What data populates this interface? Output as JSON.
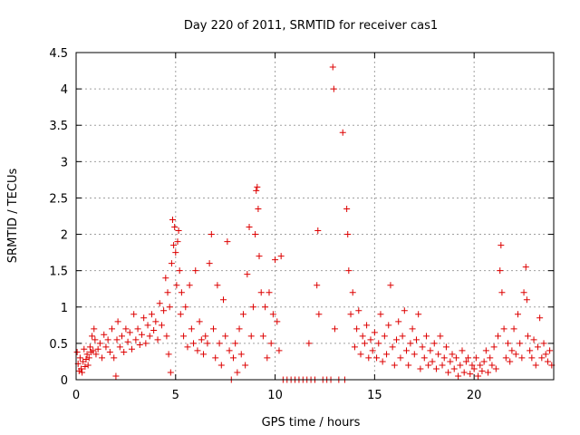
{
  "chart_data": {
    "type": "scatter",
    "title": "Day 220 of 2011, SRMTID for receiver cas1",
    "xlabel": "GPS time / hours",
    "ylabel": "SRMTID / TECUs",
    "xlim": [
      0,
      24
    ],
    "ylim": [
      0,
      4.5
    ],
    "xticks": [
      0,
      5,
      10,
      15,
      20
    ],
    "yticks": [
      0,
      0.5,
      1,
      1.5,
      2,
      2.5,
      3,
      3.5,
      4,
      4.5
    ],
    "xtick_labels": [
      "0",
      "5",
      "10",
      "15",
      "20"
    ],
    "ytick_labels": [
      "0",
      "0.5",
      "1",
      "1.5",
      "2",
      "2.5",
      "3",
      "3.5",
      "4",
      "4.5"
    ],
    "grid": true,
    "marker": "+",
    "color": "#dd0000",
    "series": [
      {
        "name": "cas1",
        "points": [
          [
            0.05,
            0.38
          ],
          [
            0.1,
            0.22
          ],
          [
            0.15,
            0.12
          ],
          [
            0.2,
            0.3
          ],
          [
            0.25,
            0.15
          ],
          [
            0.3,
            0.1
          ],
          [
            0.35,
            0.25
          ],
          [
            0.4,
            0.42
          ],
          [
            0.45,
            0.18
          ],
          [
            0.5,
            0.28
          ],
          [
            0.55,
            0.35
          ],
          [
            0.6,
            0.2
          ],
          [
            0.65,
            0.3
          ],
          [
            0.7,
            0.45
          ],
          [
            0.75,
            0.38
          ],
          [
            0.8,
            0.6
          ],
          [
            0.85,
            0.4
          ],
          [
            0.9,
            0.7
          ],
          [
            0.95,
            0.55
          ],
          [
            1.0,
            0.35
          ],
          [
            1.1,
            0.42
          ],
          [
            1.2,
            0.5
          ],
          [
            1.3,
            0.3
          ],
          [
            1.4,
            0.62
          ],
          [
            1.5,
            0.45
          ],
          [
            1.6,
            0.55
          ],
          [
            1.7,
            0.38
          ],
          [
            1.8,
            0.7
          ],
          [
            1.9,
            0.3
          ],
          [
            2.0,
            0.05
          ],
          [
            2.05,
            0.55
          ],
          [
            2.1,
            0.8
          ],
          [
            2.2,
            0.45
          ],
          [
            2.3,
            0.6
          ],
          [
            2.4,
            0.38
          ],
          [
            2.5,
            0.7
          ],
          [
            2.6,
            0.52
          ],
          [
            2.7,
            0.65
          ],
          [
            2.8,
            0.42
          ],
          [
            2.9,
            0.9
          ],
          [
            3.0,
            0.55
          ],
          [
            3.1,
            0.7
          ],
          [
            3.2,
            0.48
          ],
          [
            3.3,
            0.62
          ],
          [
            3.4,
            0.85
          ],
          [
            3.5,
            0.5
          ],
          [
            3.6,
            0.75
          ],
          [
            3.7,
            0.6
          ],
          [
            3.8,
            0.9
          ],
          [
            3.9,
            0.68
          ],
          [
            4.0,
            0.8
          ],
          [
            4.1,
            0.55
          ],
          [
            4.2,
            1.05
          ],
          [
            4.3,
            0.75
          ],
          [
            4.4,
            0.95
          ],
          [
            4.5,
            1.4
          ],
          [
            4.55,
            0.6
          ],
          [
            4.6,
            1.2
          ],
          [
            4.65,
            0.35
          ],
          [
            4.7,
            1.0
          ],
          [
            4.75,
            0.1
          ],
          [
            4.8,
            1.6
          ],
          [
            4.85,
            2.2
          ],
          [
            4.9,
            1.85
          ],
          [
            4.95,
            2.1
          ],
          [
            5.0,
            1.75
          ],
          [
            5.05,
            1.3
          ],
          [
            5.1,
            1.9
          ],
          [
            5.15,
            2.05
          ],
          [
            5.2,
            1.5
          ],
          [
            5.25,
            0.9
          ],
          [
            5.3,
            1.2
          ],
          [
            5.4,
            0.6
          ],
          [
            5.5,
            1.0
          ],
          [
            5.6,
            0.45
          ],
          [
            5.7,
            1.3
          ],
          [
            5.8,
            0.7
          ],
          [
            5.9,
            0.5
          ],
          [
            6.0,
            1.5
          ],
          [
            6.1,
            0.4
          ],
          [
            6.2,
            0.8
          ],
          [
            6.3,
            0.55
          ],
          [
            6.4,
            0.35
          ],
          [
            6.5,
            0.6
          ],
          [
            6.6,
            0.5
          ],
          [
            6.7,
            1.6
          ],
          [
            6.8,
            2.0
          ],
          [
            6.9,
            0.7
          ],
          [
            7.0,
            0.3
          ],
          [
            7.1,
            1.3
          ],
          [
            7.2,
            0.5
          ],
          [
            7.3,
            0.2
          ],
          [
            7.4,
            1.1
          ],
          [
            7.5,
            0.6
          ],
          [
            7.6,
            1.9
          ],
          [
            7.7,
            0.4
          ],
          [
            7.8,
            0.0
          ],
          [
            7.9,
            0.3
          ],
          [
            8.0,
            0.5
          ],
          [
            8.1,
            0.1
          ],
          [
            8.2,
            0.7
          ],
          [
            8.3,
            0.35
          ],
          [
            8.4,
            0.9
          ],
          [
            8.5,
            0.2
          ],
          [
            8.6,
            1.45
          ],
          [
            8.7,
            2.1
          ],
          [
            8.8,
            0.6
          ],
          [
            8.9,
            1.0
          ],
          [
            9.0,
            2.0
          ],
          [
            9.05,
            2.6
          ],
          [
            9.1,
            2.65
          ],
          [
            9.15,
            2.35
          ],
          [
            9.2,
            1.7
          ],
          [
            9.3,
            1.2
          ],
          [
            9.4,
            0.6
          ],
          [
            9.5,
            1.0
          ],
          [
            9.6,
            0.3
          ],
          [
            9.7,
            1.2
          ],
          [
            9.8,
            0.5
          ],
          [
            9.9,
            0.9
          ],
          [
            10.0,
            1.65
          ],
          [
            10.1,
            0.8
          ],
          [
            10.2,
            0.4
          ],
          [
            10.3,
            1.7
          ],
          [
            10.4,
            0.0
          ],
          [
            10.6,
            0.0
          ],
          [
            10.8,
            0.0
          ],
          [
            11.0,
            0.0
          ],
          [
            11.2,
            0.0
          ],
          [
            11.4,
            0.0
          ],
          [
            11.6,
            0.0
          ],
          [
            11.7,
            0.5
          ],
          [
            11.8,
            0.0
          ],
          [
            12.0,
            0.0
          ],
          [
            12.1,
            1.3
          ],
          [
            12.15,
            2.05
          ],
          [
            12.2,
            0.9
          ],
          [
            12.4,
            0.0
          ],
          [
            12.6,
            0.0
          ],
          [
            12.8,
            0.0
          ],
          [
            12.9,
            4.3
          ],
          [
            12.95,
            4.0
          ],
          [
            13.0,
            0.7
          ],
          [
            13.2,
            0.0
          ],
          [
            13.4,
            3.4
          ],
          [
            13.5,
            0.0
          ],
          [
            13.6,
            2.35
          ],
          [
            13.65,
            2.0
          ],
          [
            13.7,
            1.5
          ],
          [
            13.8,
            0.9
          ],
          [
            13.9,
            1.2
          ],
          [
            14.0,
            0.45
          ],
          [
            14.1,
            0.7
          ],
          [
            14.2,
            0.95
          ],
          [
            14.3,
            0.35
          ],
          [
            14.4,
            0.6
          ],
          [
            14.5,
            0.5
          ],
          [
            14.6,
            0.75
          ],
          [
            14.7,
            0.3
          ],
          [
            14.8,
            0.55
          ],
          [
            14.9,
            0.4
          ],
          [
            15.0,
            0.65
          ],
          [
            15.1,
            0.3
          ],
          [
            15.2,
            0.5
          ],
          [
            15.3,
            0.9
          ],
          [
            15.4,
            0.25
          ],
          [
            15.5,
            0.6
          ],
          [
            15.6,
            0.35
          ],
          [
            15.7,
            0.75
          ],
          [
            15.8,
            1.3
          ],
          [
            15.9,
            0.45
          ],
          [
            16.0,
            0.2
          ],
          [
            16.1,
            0.55
          ],
          [
            16.2,
            0.8
          ],
          [
            16.3,
            0.3
          ],
          [
            16.4,
            0.6
          ],
          [
            16.5,
            0.95
          ],
          [
            16.6,
            0.4
          ],
          [
            16.7,
            0.2
          ],
          [
            16.8,
            0.5
          ],
          [
            16.9,
            0.7
          ],
          [
            17.0,
            0.35
          ],
          [
            17.1,
            0.55
          ],
          [
            17.2,
            0.9
          ],
          [
            17.3,
            0.15
          ],
          [
            17.4,
            0.45
          ],
          [
            17.5,
            0.3
          ],
          [
            17.6,
            0.6
          ],
          [
            17.7,
            0.2
          ],
          [
            17.8,
            0.4
          ],
          [
            17.9,
            0.25
          ],
          [
            18.0,
            0.5
          ],
          [
            18.1,
            0.15
          ],
          [
            18.2,
            0.35
          ],
          [
            18.3,
            0.6
          ],
          [
            18.4,
            0.2
          ],
          [
            18.5,
            0.3
          ],
          [
            18.6,
            0.45
          ],
          [
            18.7,
            0.1
          ],
          [
            18.8,
            0.25
          ],
          [
            18.9,
            0.35
          ],
          [
            19.0,
            0.15
          ],
          [
            19.1,
            0.3
          ],
          [
            19.2,
            0.05
          ],
          [
            19.3,
            0.2
          ],
          [
            19.4,
            0.4
          ],
          [
            19.5,
            0.1
          ],
          [
            19.6,
            0.25
          ],
          [
            19.7,
            0.3
          ],
          [
            19.8,
            0.08
          ],
          [
            19.9,
            0.2
          ],
          [
            20.0,
            0.15
          ],
          [
            20.1,
            0.3
          ],
          [
            20.2,
            0.05
          ],
          [
            20.3,
            0.2
          ],
          [
            20.4,
            0.12
          ],
          [
            20.5,
            0.25
          ],
          [
            20.6,
            0.4
          ],
          [
            20.7,
            0.1
          ],
          [
            20.8,
            0.3
          ],
          [
            20.9,
            0.2
          ],
          [
            21.0,
            0.45
          ],
          [
            21.1,
            0.15
          ],
          [
            21.2,
            0.6
          ],
          [
            21.3,
            1.5
          ],
          [
            21.35,
            1.85
          ],
          [
            21.4,
            1.2
          ],
          [
            21.5,
            0.7
          ],
          [
            21.6,
            0.3
          ],
          [
            21.7,
            0.5
          ],
          [
            21.8,
            0.25
          ],
          [
            21.9,
            0.4
          ],
          [
            22.0,
            0.7
          ],
          [
            22.1,
            0.35
          ],
          [
            22.2,
            0.9
          ],
          [
            22.3,
            0.5
          ],
          [
            22.4,
            0.3
          ],
          [
            22.5,
            1.2
          ],
          [
            22.6,
            1.55
          ],
          [
            22.65,
            1.1
          ],
          [
            22.7,
            0.6
          ],
          [
            22.8,
            0.4
          ],
          [
            22.9,
            0.3
          ],
          [
            23.0,
            0.55
          ],
          [
            23.1,
            0.2
          ],
          [
            23.2,
            0.45
          ],
          [
            23.3,
            0.85
          ],
          [
            23.4,
            0.3
          ],
          [
            23.5,
            0.5
          ],
          [
            23.6,
            0.35
          ],
          [
            23.7,
            0.25
          ],
          [
            23.8,
            0.4
          ],
          [
            23.9,
            0.2
          ]
        ]
      }
    ]
  }
}
